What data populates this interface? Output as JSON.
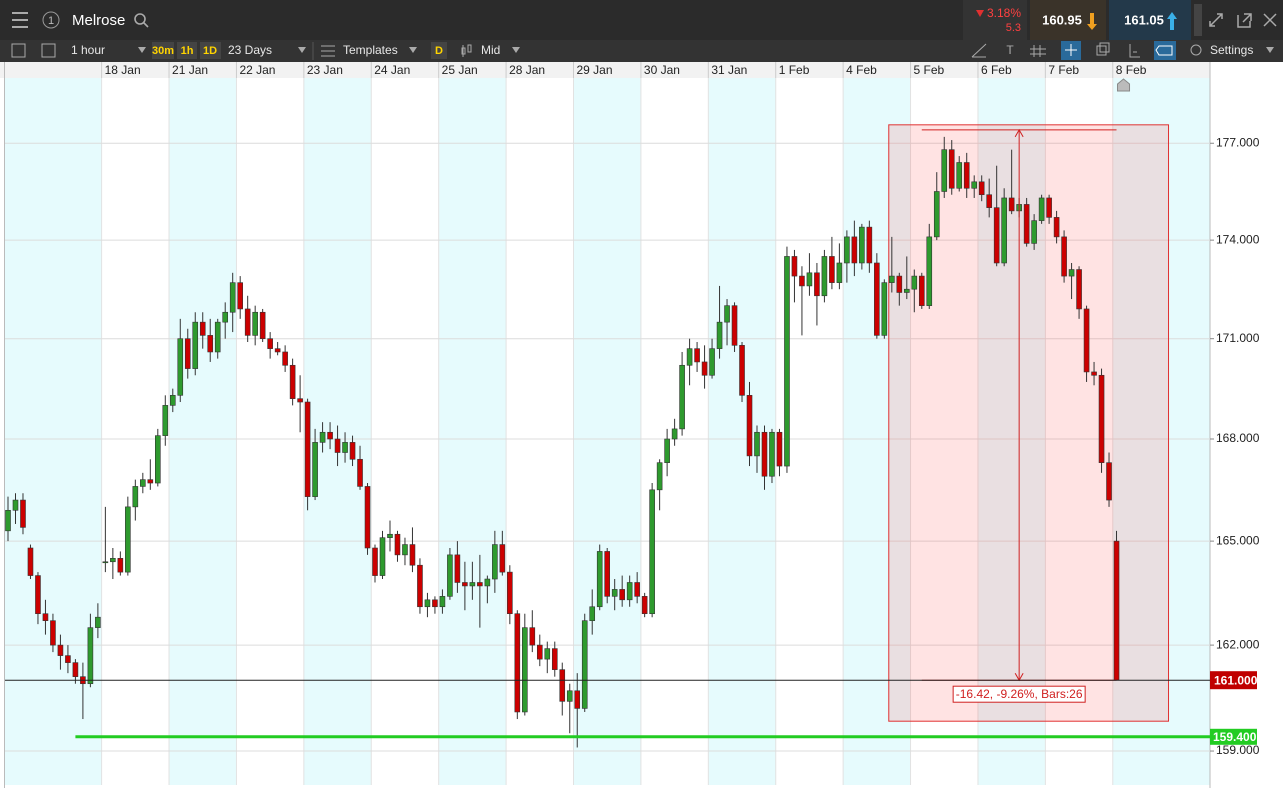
{
  "toolbar": {
    "account_badge": "1",
    "instrument": "Melrose",
    "change": "3.18%",
    "change_points": "5.3",
    "sell": "160.95",
    "buy": "161.05",
    "interval": "1 hour",
    "quick_intervals": [
      "30m",
      "1h",
      "1D"
    ],
    "range": "23 Days",
    "templates": "Templates",
    "d_button": "D",
    "price_type": "Mid",
    "settings": "Settings"
  },
  "chart_data": {
    "type": "candlestick",
    "log_scale": true,
    "grid": true,
    "up_color": "#2e9a2e",
    "down_color": "#cc0000",
    "dates": [
      "18 Jan",
      "21 Jan",
      "22 Jan",
      "23 Jan",
      "24 Jan",
      "25 Jan",
      "28 Jan",
      "29 Jan",
      "30 Jan",
      "31 Jan",
      "1 Feb",
      "4 Feb",
      "5 Feb",
      "6 Feb",
      "7 Feb",
      "8 Feb"
    ],
    "ylim": [
      158.05,
      179.05
    ],
    "yticks": [
      {
        "value": 159,
        "label": "159.000"
      },
      {
        "value": 162,
        "label": "162.000"
      },
      {
        "value": 165,
        "label": "165.000"
      },
      {
        "value": 168,
        "label": "168.000"
      },
      {
        "value": 171,
        "label": "171.000"
      },
      {
        "value": 174,
        "label": "174.000"
      },
      {
        "value": 177,
        "label": "177.000"
      }
    ],
    "current_price": {
      "value": 161,
      "label": "161.000"
    },
    "horizontal_line": {
      "value": 159.4,
      "label": "159.400",
      "color": "#22cc22"
    },
    "measure": {
      "from": 177.42,
      "to": 161,
      "label": "-16.42, -9.26%, Bars:26"
    },
    "ohlc": [
      [
        165.3,
        166.3,
        165.0,
        165.9
      ],
      [
        165.9,
        166.4,
        165.5,
        166.2
      ],
      [
        166.2,
        166.4,
        165.2,
        165.4
      ],
      [
        164.8,
        164.9,
        163.9,
        164.0
      ],
      [
        164.0,
        164.1,
        162.6,
        162.9
      ],
      [
        162.9,
        163.3,
        162.3,
        162.7
      ],
      [
        162.7,
        162.9,
        161.8,
        162.0
      ],
      [
        162.0,
        162.3,
        161.3,
        161.7
      ],
      [
        161.7,
        162.0,
        161.2,
        161.5
      ],
      [
        161.5,
        161.6,
        160.9,
        161.1
      ],
      [
        161.1,
        161.5,
        159.9,
        160.9
      ],
      [
        160.9,
        162.9,
        160.8,
        162.5
      ],
      [
        162.5,
        163.2,
        162.2,
        162.8
      ],
      [
        164.4,
        166.0,
        164.1,
        164.4
      ],
      [
        164.4,
        164.8,
        163.9,
        164.5
      ],
      [
        164.5,
        164.7,
        164.0,
        164.1
      ],
      [
        164.1,
        166.3,
        164.0,
        166.0
      ],
      [
        166.0,
        166.8,
        165.6,
        166.6
      ],
      [
        166.6,
        167.0,
        166.4,
        166.8
      ],
      [
        166.8,
        167.4,
        166.5,
        166.7
      ],
      [
        166.7,
        168.3,
        166.6,
        168.1
      ],
      [
        168.1,
        169.3,
        167.8,
        169.0
      ],
      [
        169.0,
        169.5,
        168.8,
        169.3
      ],
      [
        169.3,
        171.6,
        169.1,
        171.0
      ],
      [
        171.0,
        171.3,
        169.8,
        170.1
      ],
      [
        170.1,
        171.8,
        169.9,
        171.5
      ],
      [
        171.5,
        171.8,
        170.7,
        171.1
      ],
      [
        171.1,
        171.6,
        170.3,
        170.6
      ],
      [
        170.6,
        171.6,
        170.4,
        171.5
      ],
      [
        171.5,
        172.1,
        171.0,
        171.8
      ],
      [
        171.8,
        173.0,
        171.2,
        172.7
      ],
      [
        172.7,
        172.9,
        171.6,
        171.9
      ],
      [
        171.9,
        172.3,
        170.9,
        171.1
      ],
      [
        171.1,
        172.0,
        170.8,
        171.8
      ],
      [
        171.8,
        171.9,
        170.9,
        171.0
      ],
      [
        171.0,
        171.2,
        170.4,
        170.7
      ],
      [
        170.7,
        170.9,
        170.5,
        170.6
      ],
      [
        170.6,
        170.8,
        170.0,
        170.2
      ],
      [
        170.2,
        170.4,
        169.0,
        169.2
      ],
      [
        169.2,
        169.9,
        168.2,
        169.1
      ],
      [
        169.1,
        169.2,
        165.9,
        166.3
      ],
      [
        166.3,
        168.3,
        166.2,
        167.9
      ],
      [
        167.9,
        168.5,
        167.6,
        168.2
      ],
      [
        168.2,
        168.5,
        167.7,
        168.0
      ],
      [
        168.0,
        168.4,
        167.2,
        167.6
      ],
      [
        167.6,
        168.2,
        167.3,
        167.9
      ],
      [
        167.9,
        168.1,
        167.2,
        167.4
      ],
      [
        167.4,
        167.8,
        166.5,
        166.6
      ],
      [
        166.6,
        166.7,
        164.6,
        164.8
      ],
      [
        164.8,
        164.9,
        163.8,
        164.0
      ],
      [
        164.0,
        165.3,
        163.9,
        165.1
      ],
      [
        165.1,
        165.6,
        164.7,
        165.2
      ],
      [
        165.2,
        165.3,
        164.4,
        164.6
      ],
      [
        164.6,
        165.1,
        164.3,
        164.9
      ],
      [
        164.9,
        165.4,
        164.1,
        164.3
      ],
      [
        164.3,
        164.5,
        162.9,
        163.1
      ],
      [
        163.1,
        163.5,
        162.8,
        163.3
      ],
      [
        163.3,
        163.4,
        162.9,
        163.1
      ],
      [
        163.1,
        163.6,
        162.9,
        163.4
      ],
      [
        163.4,
        164.8,
        163.3,
        164.6
      ],
      [
        164.6,
        165.0,
        163.5,
        163.8
      ],
      [
        163.8,
        164.4,
        163.0,
        163.7
      ],
      [
        163.7,
        164.4,
        163.3,
        163.8
      ],
      [
        163.8,
        164.6,
        162.5,
        163.7
      ],
      [
        163.7,
        164.0,
        163.2,
        163.9
      ],
      [
        163.9,
        165.3,
        163.5,
        164.9
      ],
      [
        164.9,
        165.3,
        164.0,
        164.1
      ],
      [
        164.1,
        164.3,
        162.6,
        162.9
      ],
      [
        162.9,
        163.0,
        159.9,
        160.1
      ],
      [
        160.1,
        162.9,
        160.0,
        162.5
      ],
      [
        162.5,
        163.0,
        161.8,
        162.0
      ],
      [
        162.0,
        162.3,
        161.4,
        161.6
      ],
      [
        161.6,
        162.1,
        161.2,
        161.9
      ],
      [
        161.9,
        162.1,
        161.1,
        161.3
      ],
      [
        161.3,
        161.5,
        160.0,
        160.4
      ],
      [
        160.4,
        160.9,
        159.5,
        160.7
      ],
      [
        160.7,
        161.2,
        159.1,
        160.2
      ],
      [
        160.2,
        162.9,
        160.1,
        162.7
      ],
      [
        162.7,
        163.6,
        162.3,
        163.1
      ],
      [
        163.1,
        164.9,
        163.0,
        164.7
      ],
      [
        164.7,
        164.8,
        163.2,
        163.4
      ],
      [
        163.4,
        163.9,
        163.0,
        163.6
      ],
      [
        163.6,
        164.0,
        163.1,
        163.3
      ],
      [
        163.3,
        164.0,
        163.1,
        163.8
      ],
      [
        163.8,
        164.1,
        163.2,
        163.4
      ],
      [
        163.4,
        163.5,
        162.8,
        162.9
      ],
      [
        162.9,
        166.7,
        162.8,
        166.5
      ],
      [
        166.5,
        167.4,
        165.9,
        167.3
      ],
      [
        167.3,
        168.3,
        166.9,
        168.0
      ],
      [
        168.0,
        168.6,
        167.8,
        168.3
      ],
      [
        168.3,
        170.6,
        168.1,
        170.2
      ],
      [
        170.2,
        171.0,
        169.6,
        170.7
      ],
      [
        170.7,
        170.9,
        170.0,
        170.3
      ],
      [
        170.3,
        170.8,
        169.5,
        169.9
      ],
      [
        169.9,
        171.0,
        169.8,
        170.7
      ],
      [
        170.7,
        172.6,
        170.4,
        171.5
      ],
      [
        171.5,
        172.2,
        170.8,
        172.0
      ],
      [
        172.0,
        172.1,
        170.6,
        170.8
      ],
      [
        170.8,
        170.9,
        169.1,
        169.3
      ],
      [
        169.3,
        169.7,
        167.2,
        167.5
      ],
      [
        167.5,
        168.4,
        167.0,
        168.2
      ],
      [
        168.2,
        168.4,
        166.5,
        166.9
      ],
      [
        166.9,
        168.3,
        166.7,
        168.2
      ],
      [
        168.2,
        168.3,
        166.9,
        167.2
      ],
      [
        167.2,
        173.8,
        167.0,
        173.5
      ],
      [
        173.5,
        173.7,
        172.1,
        172.9
      ],
      [
        172.9,
        173.2,
        171.1,
        172.6
      ],
      [
        172.6,
        173.6,
        172.3,
        173.0
      ],
      [
        173.0,
        173.3,
        171.4,
        172.3
      ],
      [
        172.3,
        173.7,
        172.1,
        173.5
      ],
      [
        173.5,
        174.1,
        172.5,
        172.7
      ],
      [
        172.7,
        173.9,
        172.5,
        173.3
      ],
      [
        173.3,
        174.3,
        172.7,
        174.1
      ],
      [
        174.1,
        174.6,
        172.9,
        173.3
      ],
      [
        173.3,
        174.5,
        173.1,
        174.4
      ],
      [
        174.4,
        174.6,
        173.0,
        173.3
      ],
      [
        173.3,
        173.6,
        171.0,
        171.1
      ],
      [
        171.1,
        172.8,
        171.0,
        172.7
      ],
      [
        172.7,
        174.1,
        172.4,
        172.9
      ],
      [
        172.9,
        173.0,
        172.0,
        172.4
      ],
      [
        172.4,
        173.5,
        172.2,
        172.5
      ],
      [
        172.5,
        173.1,
        171.8,
        172.9
      ],
      [
        172.9,
        173.0,
        171.9,
        172.0
      ],
      [
        172.0,
        174.5,
        171.9,
        174.1
      ],
      [
        174.1,
        176.1,
        174.0,
        175.5
      ],
      [
        175.5,
        177.2,
        175.3,
        176.8
      ],
      [
        176.8,
        177.1,
        175.4,
        175.6
      ],
      [
        175.6,
        176.6,
        175.5,
        176.4
      ],
      [
        176.4,
        176.7,
        175.3,
        175.6
      ],
      [
        175.6,
        176.0,
        175.3,
        175.8
      ],
      [
        175.8,
        176.0,
        175.2,
        175.4
      ],
      [
        175.4,
        175.9,
        174.7,
        175.0
      ],
      [
        175.0,
        176.3,
        173.2,
        173.3
      ],
      [
        173.3,
        175.6,
        173.2,
        175.3
      ],
      [
        175.3,
        176.8,
        174.8,
        174.9
      ],
      [
        174.9,
        175.3,
        174.7,
        175.1
      ],
      [
        175.1,
        175.3,
        173.8,
        173.9
      ],
      [
        173.9,
        174.8,
        173.7,
        174.6
      ],
      [
        174.6,
        175.4,
        174.5,
        175.3
      ],
      [
        175.3,
        175.4,
        174.5,
        174.7
      ],
      [
        174.7,
        174.9,
        173.9,
        174.1
      ],
      [
        174.1,
        174.3,
        172.7,
        172.9
      ],
      [
        172.9,
        173.3,
        172.2,
        173.1
      ],
      [
        173.1,
        173.2,
        171.6,
        171.9
      ],
      [
        171.9,
        172.0,
        169.7,
        170.0
      ],
      [
        170.0,
        170.3,
        169.6,
        169.9
      ],
      [
        169.9,
        170.1,
        167.0,
        167.3
      ],
      [
        167.3,
        167.6,
        166.0,
        166.2
      ],
      [
        165.0,
        165.3,
        161.0,
        161.0
      ]
    ]
  }
}
